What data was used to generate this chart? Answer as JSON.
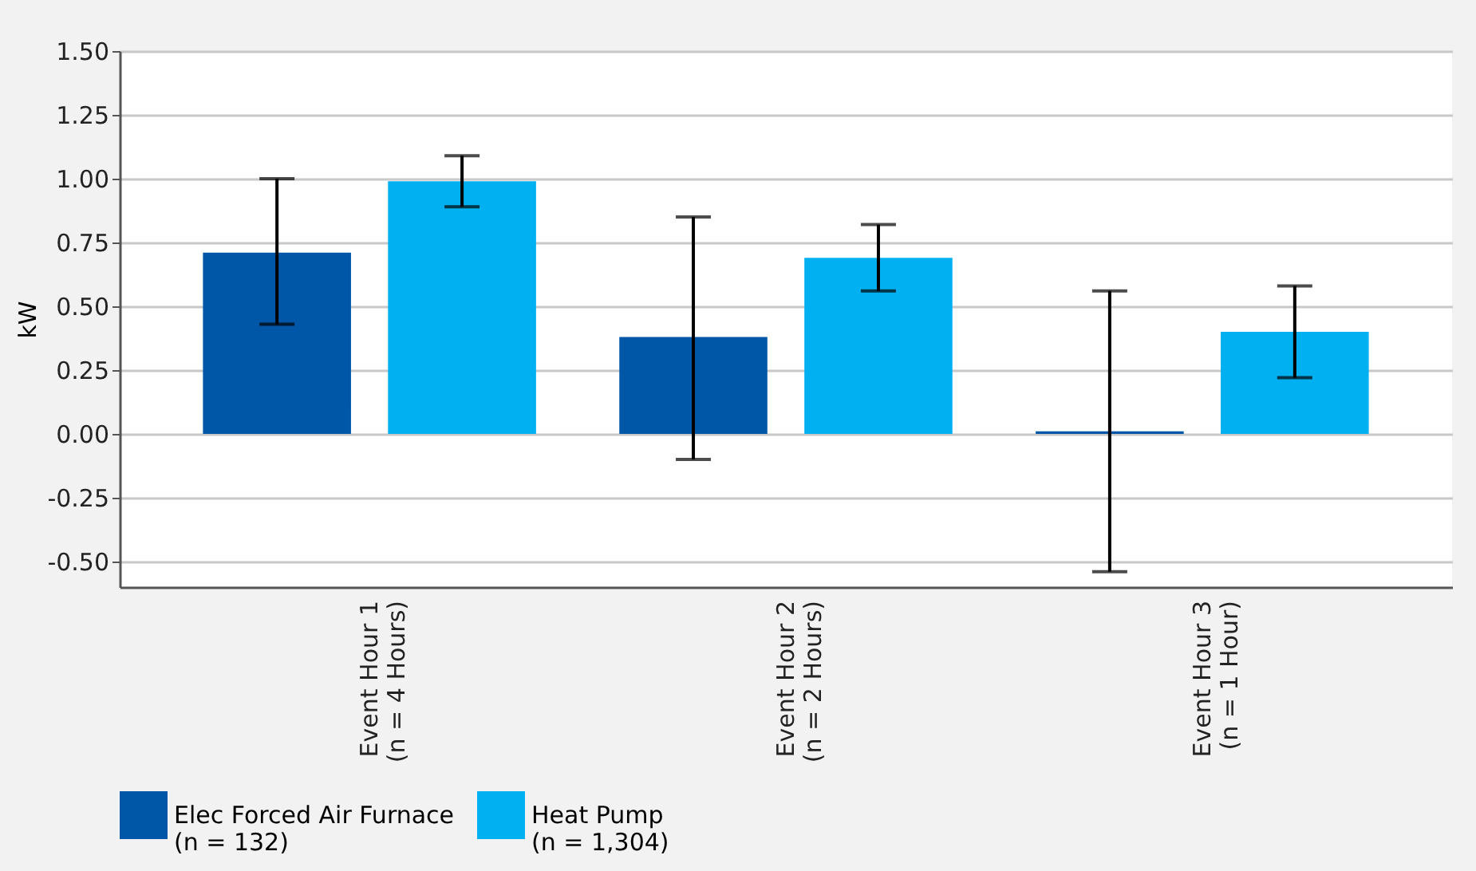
{
  "chart_data": {
    "type": "bar",
    "ylabel": "kW",
    "categories": [
      "Event Hour 1\n(n = 4 Hours)",
      "Event Hour 2\n(n = 2 Hours)",
      "Event Hour 3\n(n = 1 Hour)"
    ],
    "series": [
      {
        "name": "Elec Forced Air Furnace\n(n = 132)",
        "color": "#0057a8",
        "values": [
          0.71,
          0.38,
          0.01
        ],
        "errors": [
          [
            0.43,
            1.0
          ],
          [
            -0.1,
            0.85
          ],
          [
            -0.54,
            0.56
          ]
        ]
      },
      {
        "name": "Heat Pump\n(n = 1,304)",
        "color": "#00b0f0",
        "values": [
          0.99,
          0.69,
          0.4
        ],
        "errors": [
          [
            0.89,
            1.09
          ],
          [
            0.56,
            0.82
          ],
          [
            0.22,
            0.58
          ]
        ]
      }
    ],
    "ylim": [
      -0.6,
      1.5
    ],
    "yticks": [
      {
        "value": -0.5,
        "label": "-0.50"
      },
      {
        "value": -0.25,
        "label": "-0.25"
      },
      {
        "value": 0,
        "label": "0.00"
      },
      {
        "value": 0.25,
        "label": "0.25"
      },
      {
        "value": 0.5,
        "label": "0.50"
      },
      {
        "value": 0.75,
        "label": "0.75"
      },
      {
        "value": 1,
        "label": "1.00"
      },
      {
        "value": 1.25,
        "label": "1.25"
      },
      {
        "value": 1.5,
        "label": "1.50"
      }
    ],
    "grid": "y",
    "legend": "bottom"
  }
}
